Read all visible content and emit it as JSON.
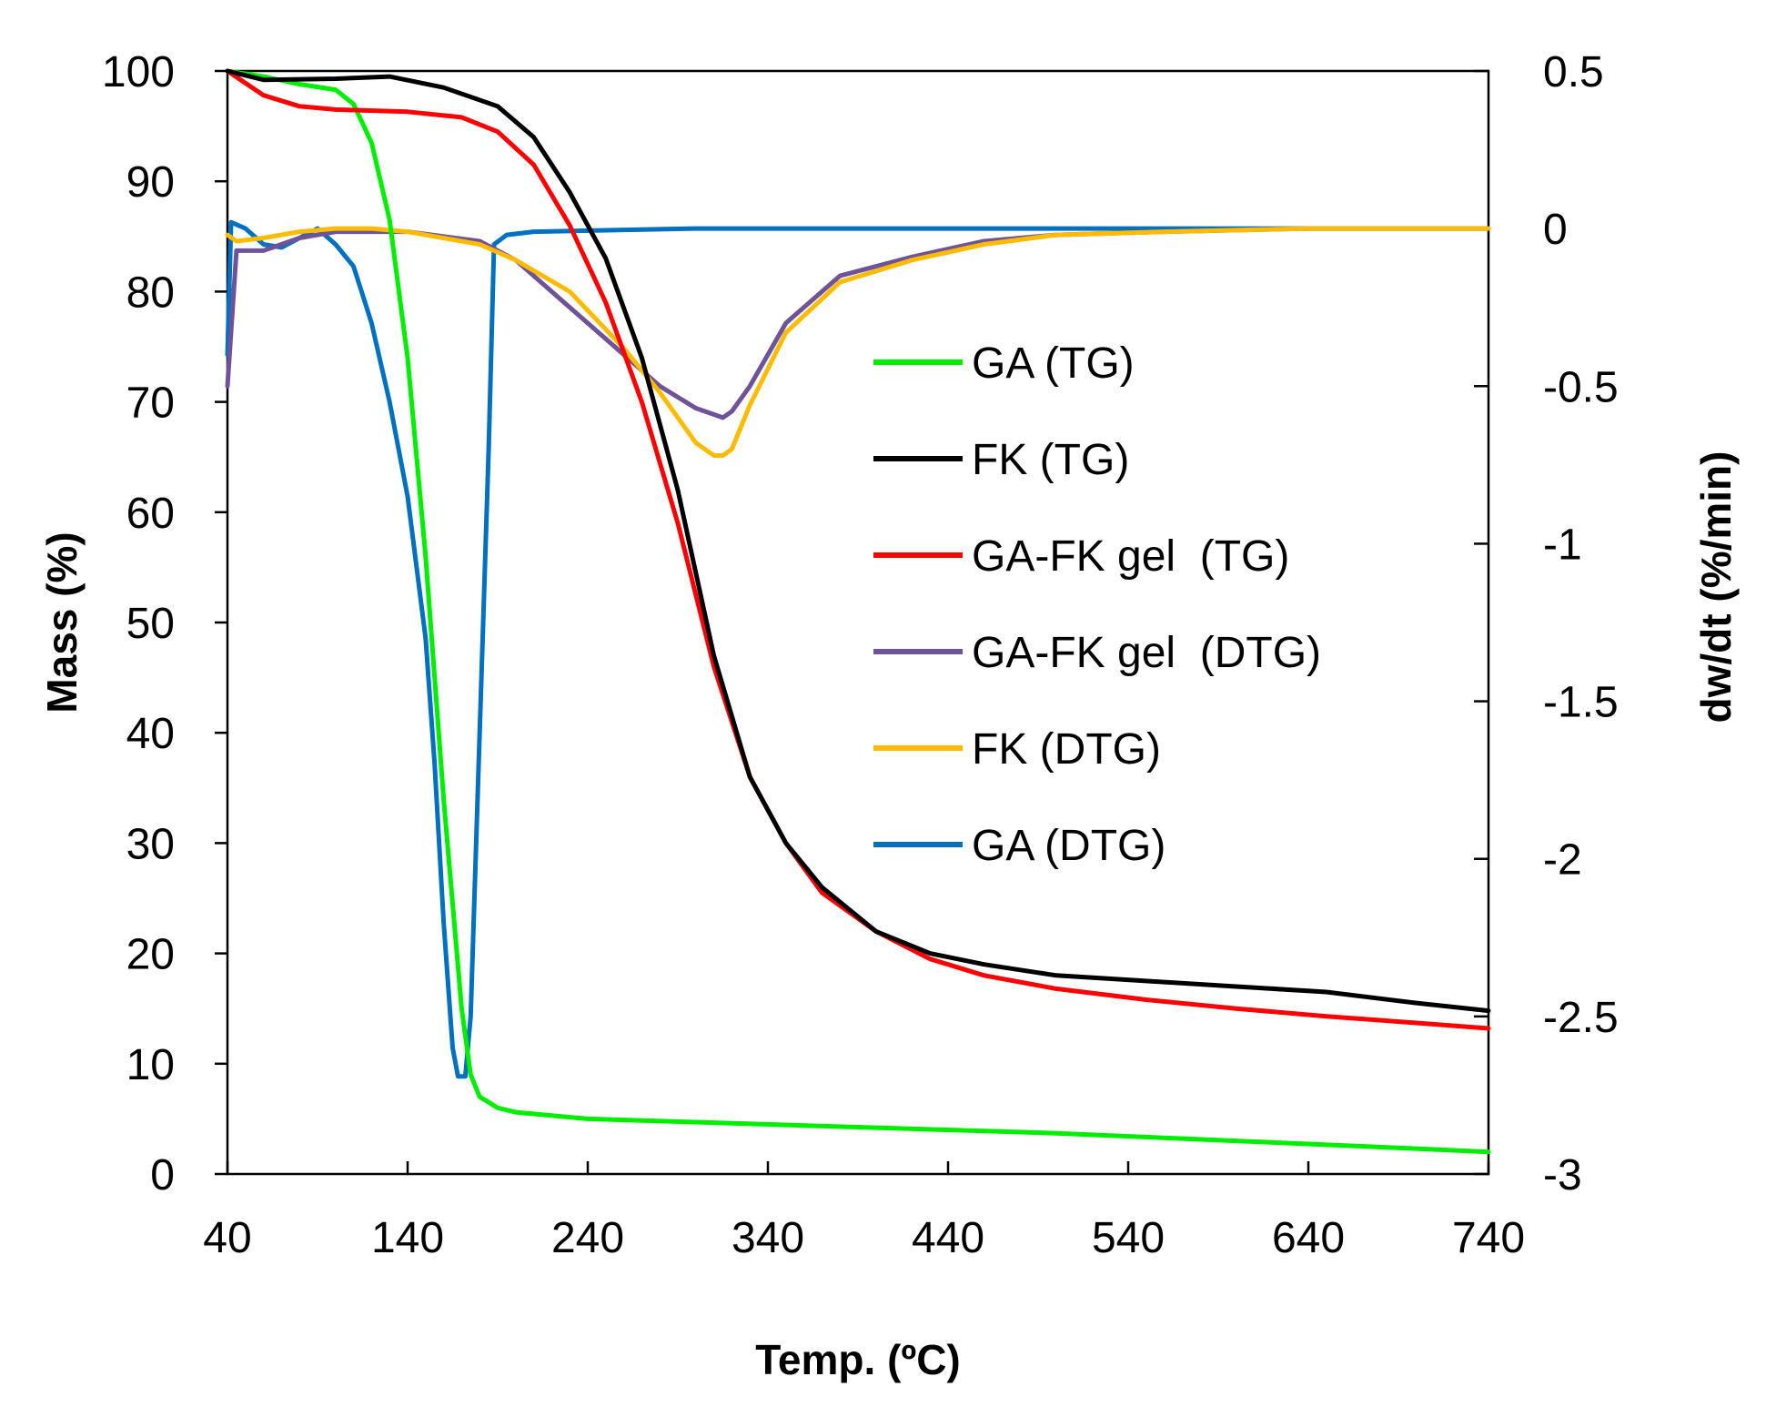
{
  "chart_data": {
    "type": "line",
    "title": "",
    "xlabel": "Temp. (ºC)",
    "ylabel": "Mass (%)",
    "y2label": "dw/dt (%/min)",
    "xlim": [
      40,
      740
    ],
    "ylim": [
      0,
      100
    ],
    "y2lim": [
      -3,
      0.5
    ],
    "xticks": [
      40,
      140,
      240,
      340,
      440,
      540,
      640,
      740
    ],
    "yticks": [
      0,
      10,
      20,
      30,
      40,
      50,
      60,
      70,
      80,
      90,
      100
    ],
    "y2ticks": [
      -3,
      -2.5,
      -2,
      -1.5,
      -1,
      -0.5,
      0,
      0.5
    ],
    "y2tick_labels": [
      "-3",
      "-2.5",
      "-2",
      "-1.5",
      "-1",
      "-0.5",
      "0",
      "0.5"
    ],
    "grid": false,
    "legend_position": "center-right",
    "series": [
      {
        "name": "GA (TG)",
        "axis": "left",
        "color": "#00ee00",
        "x": [
          40,
          60,
          80,
          100,
          110,
          120,
          130,
          140,
          150,
          160,
          170,
          175,
          180,
          185,
          190,
          200,
          240,
          300,
          400,
          500,
          600,
          700,
          740
        ],
        "y": [
          100,
          99.5,
          98.8,
          98.3,
          97,
          93.5,
          86.5,
          74,
          56,
          34,
          15,
          9,
          7,
          6.5,
          6,
          5.6,
          5,
          4.7,
          4.2,
          3.7,
          3,
          2.3,
          2
        ]
      },
      {
        "name": "FK (TG)",
        "axis": "left",
        "color": "#000000",
        "x": [
          40,
          60,
          100,
          130,
          160,
          190,
          210,
          230,
          250,
          270,
          290,
          310,
          330,
          350,
          370,
          400,
          430,
          460,
          500,
          550,
          600,
          650,
          700,
          740
        ],
        "y": [
          100,
          99.2,
          99.3,
          99.5,
          98.5,
          96.8,
          94,
          89,
          83,
          74,
          62,
          47,
          36,
          30,
          26,
          22,
          20,
          19,
          18,
          17.5,
          17,
          16.5,
          15.5,
          14.8
        ]
      },
      {
        "name": "GA-FK gel  (TG)",
        "axis": "left",
        "color": "#ff0000",
        "x": [
          40,
          60,
          80,
          100,
          140,
          170,
          190,
          210,
          230,
          250,
          270,
          290,
          310,
          330,
          350,
          370,
          400,
          430,
          460,
          500,
          550,
          600,
          650,
          700,
          740
        ],
        "y": [
          100,
          97.8,
          96.8,
          96.5,
          96.3,
          95.8,
          94.5,
          91.5,
          86,
          79,
          70,
          59,
          46,
          36,
          30,
          25.5,
          22,
          19.5,
          18,
          16.8,
          15.8,
          15,
          14.3,
          13.7,
          13.2
        ]
      },
      {
        "name": "GA-FK gel  (DTG)",
        "axis": "right",
        "color": "#6e5398",
        "x": [
          40,
          45,
          60,
          80,
          100,
          140,
          180,
          200,
          230,
          260,
          280,
          300,
          315,
          320,
          330,
          350,
          380,
          420,
          460,
          500,
          560,
          640,
          740
        ],
        "y": [
          -0.5,
          -0.07,
          -0.07,
          -0.03,
          -0.01,
          -0.01,
          -0.04,
          -0.1,
          -0.25,
          -0.4,
          -0.5,
          -0.57,
          -0.6,
          -0.58,
          -0.5,
          -0.3,
          -0.15,
          -0.09,
          -0.04,
          -0.02,
          -0.01,
          0,
          0
        ]
      },
      {
        "name": "FK (DTG)",
        "axis": "right",
        "color": "#ffbb00",
        "x": [
          40,
          45,
          60,
          80,
          100,
          120,
          140,
          180,
          200,
          230,
          260,
          280,
          300,
          310,
          315,
          320,
          330,
          350,
          380,
          420,
          460,
          500,
          560,
          640,
          740
        ],
        "y": [
          -0.02,
          -0.04,
          -0.03,
          -0.01,
          0,
          0,
          -0.01,
          -0.05,
          -0.1,
          -0.2,
          -0.38,
          -0.52,
          -0.68,
          -0.72,
          -0.72,
          -0.7,
          -0.56,
          -0.33,
          -0.17,
          -0.1,
          -0.05,
          -0.02,
          -0.01,
          0,
          0
        ]
      },
      {
        "name": "GA (DTG)",
        "axis": "right",
        "color": "#0070c0",
        "x": [
          40,
          42,
          50,
          60,
          70,
          80,
          90,
          100,
          110,
          120,
          130,
          140,
          150,
          155,
          160,
          165,
          168,
          172,
          175,
          180,
          185,
          188,
          195,
          210,
          300,
          400,
          500,
          600,
          700,
          740
        ],
        "y": [
          -0.4,
          0.02,
          0,
          -0.05,
          -0.06,
          -0.03,
          0,
          -0.05,
          -0.12,
          -0.3,
          -0.55,
          -0.85,
          -1.3,
          -1.7,
          -2.2,
          -2.6,
          -2.69,
          -2.69,
          -2.5,
          -1.6,
          -0.7,
          -0.05,
          -0.02,
          -0.01,
          0,
          0,
          0,
          0,
          0,
          0
        ]
      }
    ]
  }
}
